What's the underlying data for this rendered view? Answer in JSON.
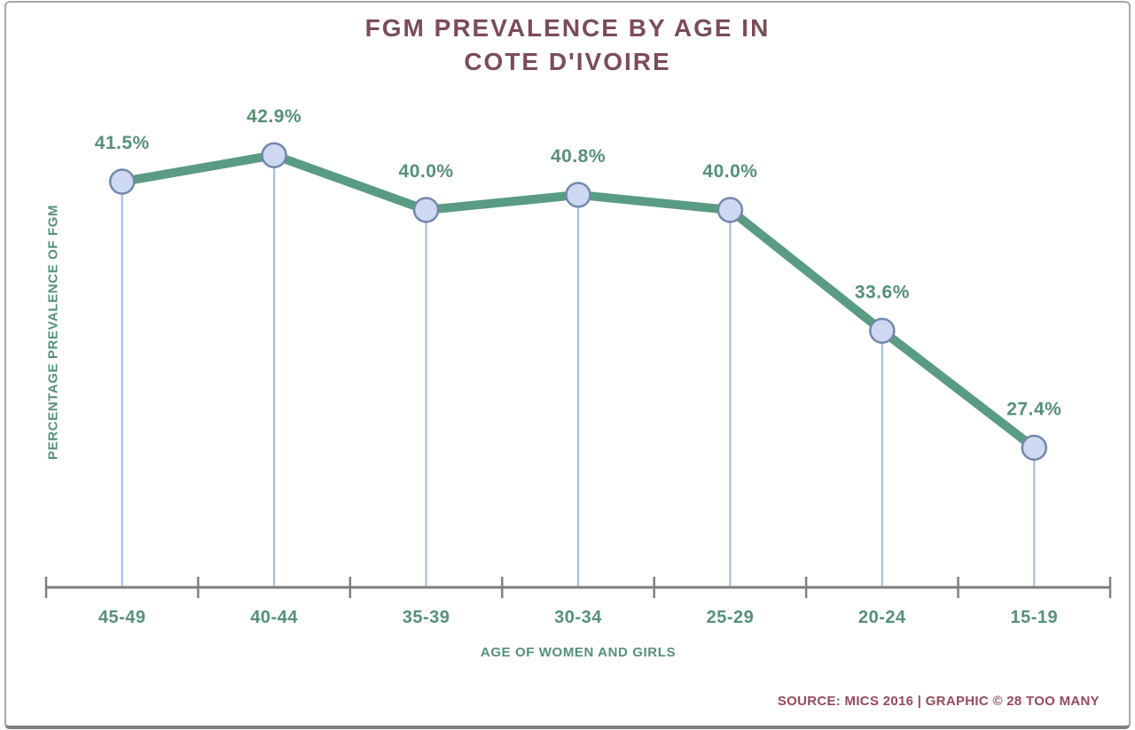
{
  "header": {
    "title_line1": "FGM PREVALENCE BY AGE IN",
    "title_line2": "COTE D'IVOIRE",
    "title_color": "#7b4c57"
  },
  "chart_data": {
    "type": "line",
    "title": "FGM PREVALENCE BY AGE IN COTE D'IVOIRE",
    "categories": [
      "45-49",
      "40-44",
      "35-39",
      "30-34",
      "25-29",
      "20-24",
      "15-19"
    ],
    "values": [
      41.5,
      42.9,
      40.0,
      40.8,
      40.0,
      33.6,
      27.4
    ],
    "labels": [
      "41.5%",
      "42.9%",
      "40.0%",
      "40.8%",
      "40.0%",
      "33.6%",
      "27.4%"
    ],
    "xlabel": "AGE OF WOMEN AND GIRLS",
    "ylabel": "PERCENTAGE PREVALENCE OF FGM",
    "ylim": [
      20,
      45
    ],
    "grid": false,
    "legend": "none",
    "marker_style": "circle-with-drop-line",
    "colors": {
      "line": "#5a9b84",
      "marker_fill": "#cdd9f0",
      "marker_stroke": "#7288ac",
      "drop_line": "#abbfe6",
      "axis": "#7f7f7f",
      "label_text": "#559078"
    }
  },
  "footer": {
    "source": "SOURCE: MICS 2016 | GRAPHIC © 28 TOO MANY",
    "source_color": "#97495d"
  }
}
